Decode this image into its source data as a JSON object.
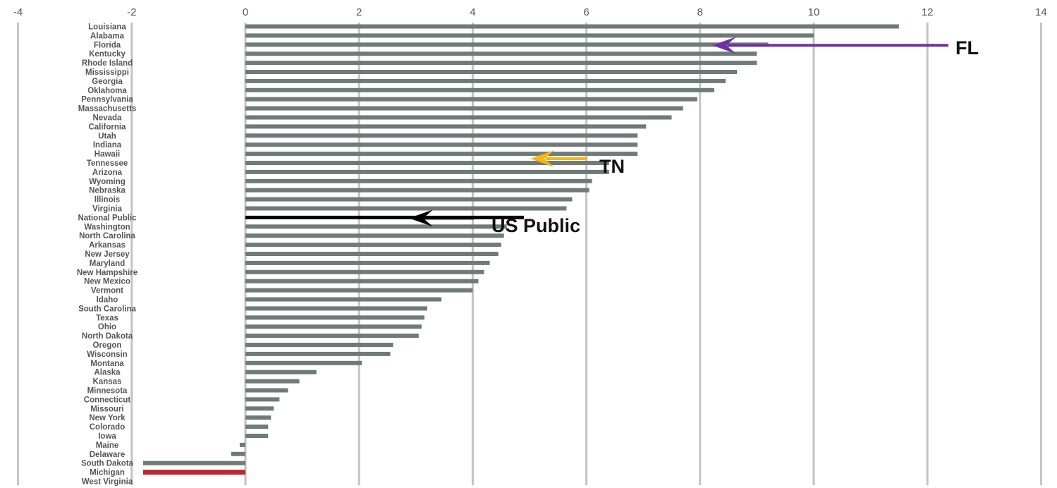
{
  "chart_data": {
    "type": "bar",
    "orientation": "horizontal",
    "title": "",
    "xlabel": "",
    "ylabel": "",
    "xlim": [
      -4,
      14
    ],
    "xticks": [
      -4,
      -2,
      0,
      2,
      4,
      6,
      8,
      10,
      12,
      14
    ],
    "grid": "vertical",
    "legend": "none",
    "categories": [
      "Louisiana",
      "Alabama",
      "Florida",
      "Kentucky",
      "Rhode Island",
      "Mississippi",
      "Georgia",
      "Oklahoma",
      "Pennsylvania",
      "Massachusetts",
      "Nevada",
      "California",
      "Utah",
      "Indiana",
      "Hawaii",
      "Tennessee",
      "Arizona",
      "Wyoming",
      "Nebraska",
      "Illinois",
      "Virginia",
      "National Public",
      "Washington",
      "North Carolina",
      "Arkansas",
      "New Jersey",
      "Maryland",
      "New Hampshire",
      "New Mexico",
      "Vermont",
      "Idaho",
      "South Carolina",
      "Texas",
      "Ohio",
      "North Dakota",
      "Oregon",
      "Wisconsin",
      "Montana",
      "Alaska",
      "Kansas",
      "Minnesota",
      "Connecticut",
      "Missouri",
      "New York",
      "Colorado",
      "Iowa",
      "Maine",
      "Delaware",
      "South Dakota",
      "Michigan",
      "West Virginia"
    ],
    "values": [
      11.5,
      10.0,
      9.2,
      9.0,
      9.0,
      8.65,
      8.45,
      8.25,
      7.95,
      7.7,
      7.5,
      7.05,
      6.9,
      6.9,
      6.9,
      6.4,
      6.4,
      6.1,
      6.05,
      5.75,
      5.65,
      4.9,
      4.6,
      4.55,
      4.5,
      4.45,
      4.3,
      4.2,
      4.1,
      4.0,
      3.45,
      3.2,
      3.15,
      3.1,
      3.05,
      2.6,
      2.55,
      2.05,
      1.25,
      0.95,
      0.75,
      0.6,
      0.5,
      0.45,
      0.4,
      0.4,
      -0.1,
      -0.25,
      -1.8,
      -1.8,
      0.0
    ],
    "colors": {
      "bar": "#6f7b77",
      "highlight_bar": "#c0262c",
      "grid": "#c3c3c3",
      "national_bar": "#000000"
    },
    "highlight_category": "Michigan",
    "reference_category": "National Public",
    "annotations": [
      {
        "text": "FL",
        "points_to": "Florida",
        "color": "#7030a0"
      },
      {
        "text": "TN",
        "points_to": "Tennessee",
        "color": "#f5b51d"
      },
      {
        "text": "US Public",
        "points_to": "National Public",
        "color": "#000000"
      }
    ]
  }
}
